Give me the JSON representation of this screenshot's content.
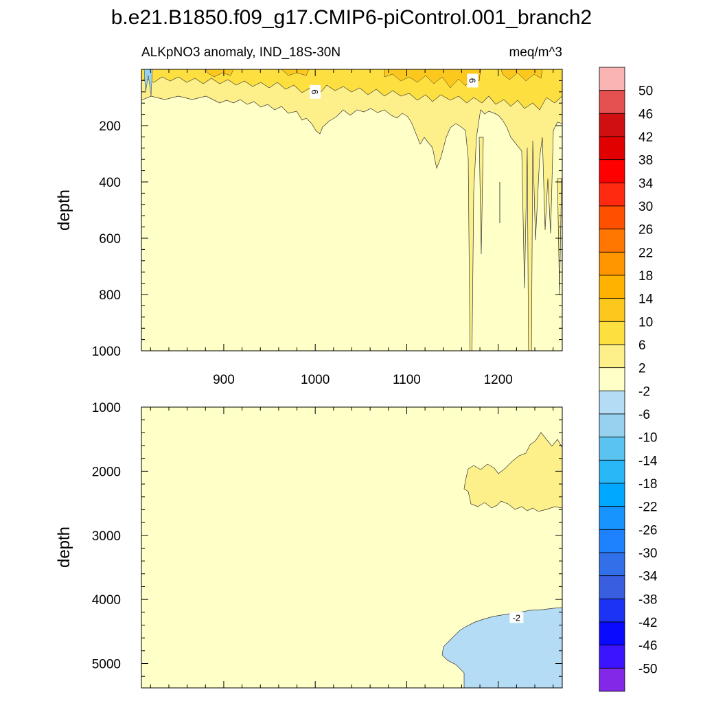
{
  "chart_data": [
    {
      "type": "contour",
      "panel": "upper",
      "title": "b.e21.B1850.f09_g17.CMIP6-piControl.001_branch2",
      "subtitle_left": "ALKpNO3 anomaly, IND_18S-30N",
      "subtitle_right": "meq/m^3",
      "xlabel": "",
      "ylabel": "depth",
      "xlim": [
        810,
        1270
      ],
      "ylim": [
        1000,
        0
      ],
      "x_ticks": [
        900,
        1000,
        1100,
        1200
      ],
      "x_tick_labels": [
        "900",
        "1000",
        "1100",
        "1200"
      ],
      "y_ticks": [
        200,
        400,
        600,
        800,
        1000
      ],
      "y_tick_labels": [
        "200",
        "400",
        "600",
        "800",
        "1000"
      ],
      "contour_labels": [
        {
          "text": "6",
          "x": 1000,
          "y": 80
        },
        {
          "text": "6",
          "x": 1172,
          "y": 40
        }
      ]
    },
    {
      "type": "contour",
      "panel": "lower",
      "xlabel": "",
      "ylabel": "depth",
      "xlim": [
        810,
        1270
      ],
      "ylim": [
        5380,
        1000
      ],
      "y_ticks": [
        1000,
        2000,
        3000,
        4000,
        5000
      ],
      "y_tick_labels": [
        "1000",
        "2000",
        "3000",
        "4000",
        "5000"
      ],
      "contour_labels": [
        {
          "text": "-2",
          "x": 1220,
          "y": 4280
        }
      ]
    }
  ],
  "colorbar": {
    "labels": [
      "50",
      "46",
      "42",
      "38",
      "34",
      "30",
      "26",
      "22",
      "18",
      "14",
      "10",
      "6",
      "2",
      "-2",
      "-6",
      "-10",
      "-14",
      "-18",
      "-22",
      "-26",
      "-30",
      "-34",
      "-38",
      "-42",
      "-46",
      "-50"
    ],
    "colors": [
      "#fbb4b4",
      "#e55050",
      "#d01010",
      "#e00000",
      "#ff0000",
      "#ff2a10",
      "#ff5000",
      "#ff7700",
      "#ff9600",
      "#ffb300",
      "#fcc81e",
      "#fde040",
      "#fdf08a",
      "#ffffc8",
      "#b4dcf4",
      "#96d2f0",
      "#5ac3f0",
      "#28b8f8",
      "#00a8ff",
      "#1894ff",
      "#1e82ff",
      "#3270ea",
      "#3a5ee0",
      "#1c32f4",
      "#0a0aff",
      "#3c14ff",
      "#8228e6"
    ]
  }
}
